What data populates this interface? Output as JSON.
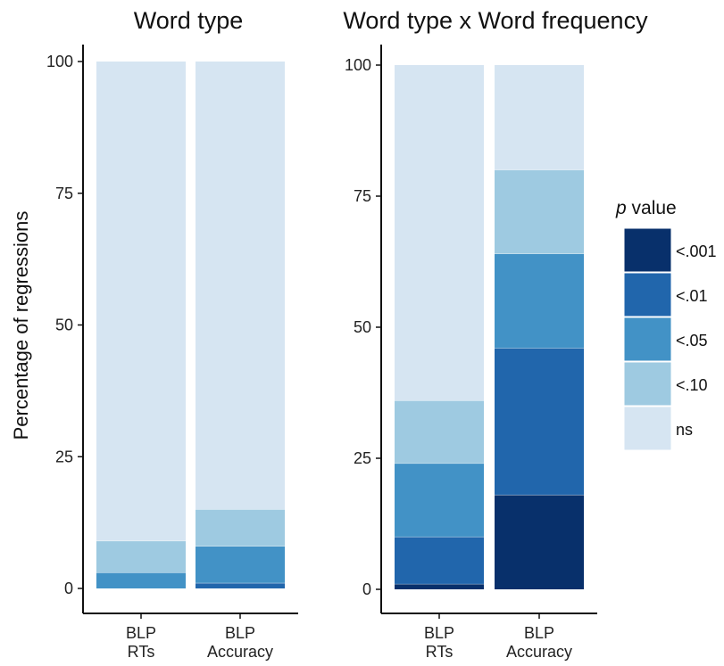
{
  "y_axis_label": "Percentage of regressions",
  "legend": {
    "title_italic": "p",
    "title_rest": " value",
    "items": [
      {
        "key": "p001",
        "label": "<.001",
        "color": "#08306b"
      },
      {
        "key": "p01",
        "label": "<.01",
        "color": "#2166ac"
      },
      {
        "key": "p05",
        "label": "<.05",
        "color": "#4292c6"
      },
      {
        "key": "p10",
        "label": "<.10",
        "color": "#9ecae1"
      },
      {
        "key": "ns",
        "label": "ns",
        "color": "#d6e5f2"
      }
    ]
  },
  "chart_data": [
    {
      "type": "bar",
      "stacked": true,
      "title": "Word type",
      "categories": [
        "BLP\nRTs",
        "BLP\nAccuracy"
      ],
      "ylim": [
        0,
        100
      ],
      "yticks": [
        0,
        25,
        50,
        75,
        100
      ],
      "series": [
        {
          "name": "<.001",
          "values": [
            0,
            0
          ]
        },
        {
          "name": "<.01",
          "values": [
            0,
            1
          ]
        },
        {
          "name": "<.05",
          "values": [
            3,
            7
          ]
        },
        {
          "name": "<.10",
          "values": [
            6,
            7
          ]
        },
        {
          "name": "ns",
          "values": [
            91,
            85
          ]
        }
      ]
    },
    {
      "type": "bar",
      "stacked": true,
      "title": "Word type x Word frequency",
      "categories": [
        "BLP\nRTs",
        "BLP\nAccuracy"
      ],
      "ylim": [
        0,
        100
      ],
      "yticks": [
        0,
        25,
        50,
        75,
        100
      ],
      "series": [
        {
          "name": "<.001",
          "values": [
            1,
            18
          ]
        },
        {
          "name": "<.01",
          "values": [
            9,
            28
          ]
        },
        {
          "name": "<.05",
          "values": [
            14,
            18
          ]
        },
        {
          "name": "<.10",
          "values": [
            12,
            16
          ]
        },
        {
          "name": "ns",
          "values": [
            64,
            20
          ]
        }
      ]
    }
  ]
}
